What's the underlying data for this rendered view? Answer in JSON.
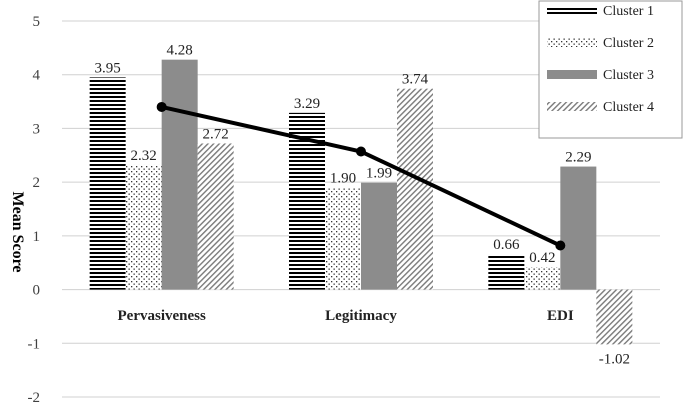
{
  "chart_data": {
    "type": "bar",
    "categories": [
      "Pervasiveness",
      "Legitimacy",
      "EDI"
    ],
    "series": [
      {
        "name": "Cluster 1",
        "values": [
          3.95,
          3.29,
          0.66
        ],
        "pattern": "horizontal-stripes"
      },
      {
        "name": "Cluster 2",
        "values": [
          2.32,
          1.9,
          0.42
        ],
        "pattern": "dots"
      },
      {
        "name": "Cluster 3",
        "values": [
          4.28,
          1.99,
          2.29
        ],
        "pattern": "solid-gray"
      },
      {
        "name": "Cluster 4",
        "values": [
          2.72,
          3.74,
          -1.02
        ],
        "pattern": "diagonal-stripes"
      }
    ],
    "data_labels": [
      [
        "3.95",
        "3.29",
        "0.66"
      ],
      [
        "2.32",
        "1.90",
        "0.42"
      ],
      [
        "4.28",
        "1.99",
        "2.29"
      ],
      [
        "2.72",
        "3.74",
        "-1.02"
      ]
    ],
    "overlay_line": {
      "values": [
        3.4,
        2.57,
        0.82
      ],
      "color": "#000000"
    },
    "ylabel": "Mean Score",
    "xlabel": "",
    "ylim": [
      -2,
      5
    ],
    "yticks": [
      5,
      4,
      3,
      2,
      1,
      0,
      -1,
      -2
    ],
    "grid": true,
    "legend_position": "top-right",
    "colors": {
      "bar_dark": "#000000",
      "bar_solid": "#8c8c8c",
      "grid": "#d0d0d0"
    }
  }
}
